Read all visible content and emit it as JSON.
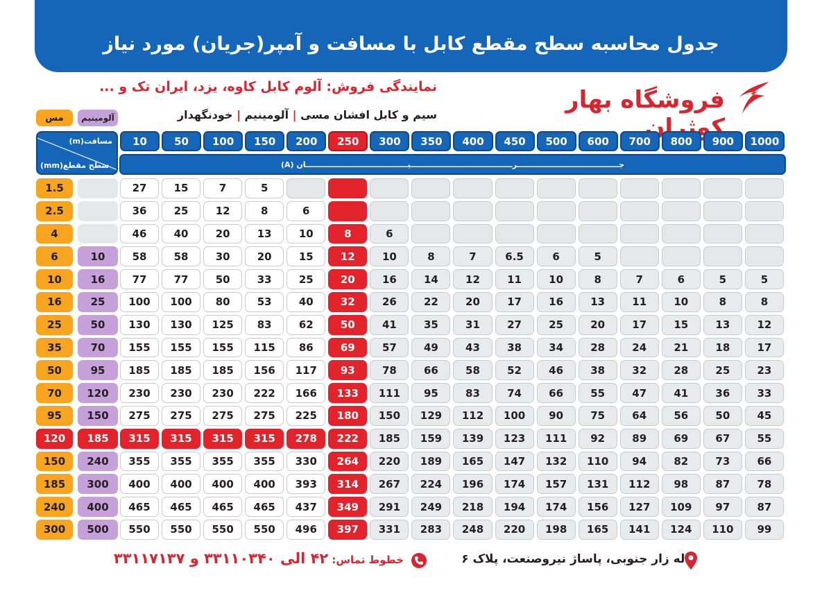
{
  "header": {
    "title": "جدول محاسبه سطح مقطع کابل با مسافت و آمپر(جریان) مورد نیاز"
  },
  "dealer": "نمایندگی فروش: آلوم کابل کاوه، یزد، ایران تک و ...",
  "products": [
    "سیم و کابل افشان مسی",
    "آلومینیم",
    "خودنگهدار"
  ],
  "brand": "فروشگاه بهار کوثران",
  "table": {
    "copper_label": "مس",
    "aluminum_label": "آلومینیم",
    "distance_label": "مسافت(m)",
    "section_label": "سطح مقطع(mm)",
    "current_label": "جـــــــــــــــــــــــــــــــــــــــرـــــــــــــــــــــــــــــــــــــــیـــــــــــــــــــــــــــــــــــــــان (A)",
    "distances": [
      10,
      50,
      100,
      150,
      200,
      250,
      300,
      350,
      400,
      450,
      500,
      600,
      700,
      800,
      900,
      1000
    ],
    "rows": [
      {
        "copper": 1.5,
        "aluminum": null,
        "currents": [
          27,
          15,
          7,
          5,
          null,
          null,
          null,
          null,
          null,
          null,
          null,
          null,
          null,
          null,
          null,
          null
        ]
      },
      {
        "copper": 2.5,
        "aluminum": null,
        "currents": [
          36,
          25,
          12,
          8,
          6,
          null,
          null,
          null,
          null,
          null,
          null,
          null,
          null,
          null,
          null,
          null
        ]
      },
      {
        "copper": 4,
        "aluminum": null,
        "currents": [
          46,
          40,
          20,
          13,
          10,
          8,
          6,
          null,
          null,
          null,
          null,
          null,
          null,
          null,
          null,
          null
        ]
      },
      {
        "copper": 6,
        "aluminum": 10,
        "currents": [
          58,
          58,
          30,
          20,
          15,
          12,
          10,
          8,
          7,
          6.5,
          6,
          5,
          null,
          null,
          null,
          null
        ]
      },
      {
        "copper": 10,
        "aluminum": 16,
        "currents": [
          77,
          77,
          50,
          33,
          25,
          20,
          16,
          14,
          12,
          11,
          10,
          8,
          7,
          6,
          5,
          5
        ]
      },
      {
        "copper": 16,
        "aluminum": 25,
        "currents": [
          100,
          100,
          80,
          53,
          40,
          32,
          26,
          22,
          20,
          17,
          16,
          13,
          11,
          10,
          8,
          8
        ]
      },
      {
        "copper": 25,
        "aluminum": 50,
        "currents": [
          130,
          130,
          125,
          83,
          62,
          50,
          41,
          35,
          31,
          27,
          25,
          20,
          17,
          15,
          13,
          12
        ]
      },
      {
        "copper": 35,
        "aluminum": 70,
        "currents": [
          155,
          155,
          155,
          115,
          86,
          69,
          57,
          49,
          43,
          38,
          34,
          28,
          24,
          21,
          18,
          17
        ]
      },
      {
        "copper": 50,
        "aluminum": 95,
        "currents": [
          185,
          185,
          185,
          156,
          117,
          93,
          78,
          66,
          58,
          52,
          46,
          38,
          32,
          28,
          25,
          23
        ]
      },
      {
        "copper": 70,
        "aluminum": 120,
        "currents": [
          230,
          230,
          230,
          222,
          166,
          133,
          111,
          95,
          83,
          74,
          66,
          55,
          47,
          41,
          36,
          33
        ]
      },
      {
        "copper": 95,
        "aluminum": 150,
        "currents": [
          275,
          275,
          275,
          275,
          225,
          180,
          150,
          129,
          112,
          100,
          90,
          75,
          64,
          56,
          50,
          45
        ]
      },
      {
        "copper": 120,
        "aluminum": 185,
        "currents": [
          315,
          315,
          315,
          315,
          278,
          222,
          185,
          159,
          139,
          123,
          111,
          92,
          89,
          69,
          67,
          55
        ]
      },
      {
        "copper": 150,
        "aluminum": 240,
        "currents": [
          355,
          355,
          355,
          355,
          330,
          264,
          220,
          189,
          165,
          147,
          132,
          110,
          94,
          82,
          73,
          66
        ]
      },
      {
        "copper": 185,
        "aluminum": 300,
        "currents": [
          400,
          400,
          400,
          400,
          393,
          314,
          267,
          224,
          196,
          174,
          157,
          131,
          112,
          98,
          87,
          78
        ]
      },
      {
        "copper": 240,
        "aluminum": 400,
        "currents": [
          465,
          465,
          465,
          465,
          437,
          349,
          291,
          249,
          218,
          194,
          174,
          156,
          127,
          109,
          97,
          87
        ]
      },
      {
        "copper": 300,
        "aluminum": 500,
        "currents": [
          550,
          550,
          550,
          550,
          496,
          397,
          331,
          283,
          248,
          220,
          198,
          165,
          141,
          124,
          110,
          99
        ]
      }
    ]
  },
  "footer": {
    "address": "لاله زار جنوبی، پاساژ نیروصنعت، پلاک ۶",
    "phone_label": "خطوط تماس:",
    "phones": "۴۲ الی ۳۳۱۱۰۳۴۰ و ۳۳۱۱۷۱۳۷"
  }
}
